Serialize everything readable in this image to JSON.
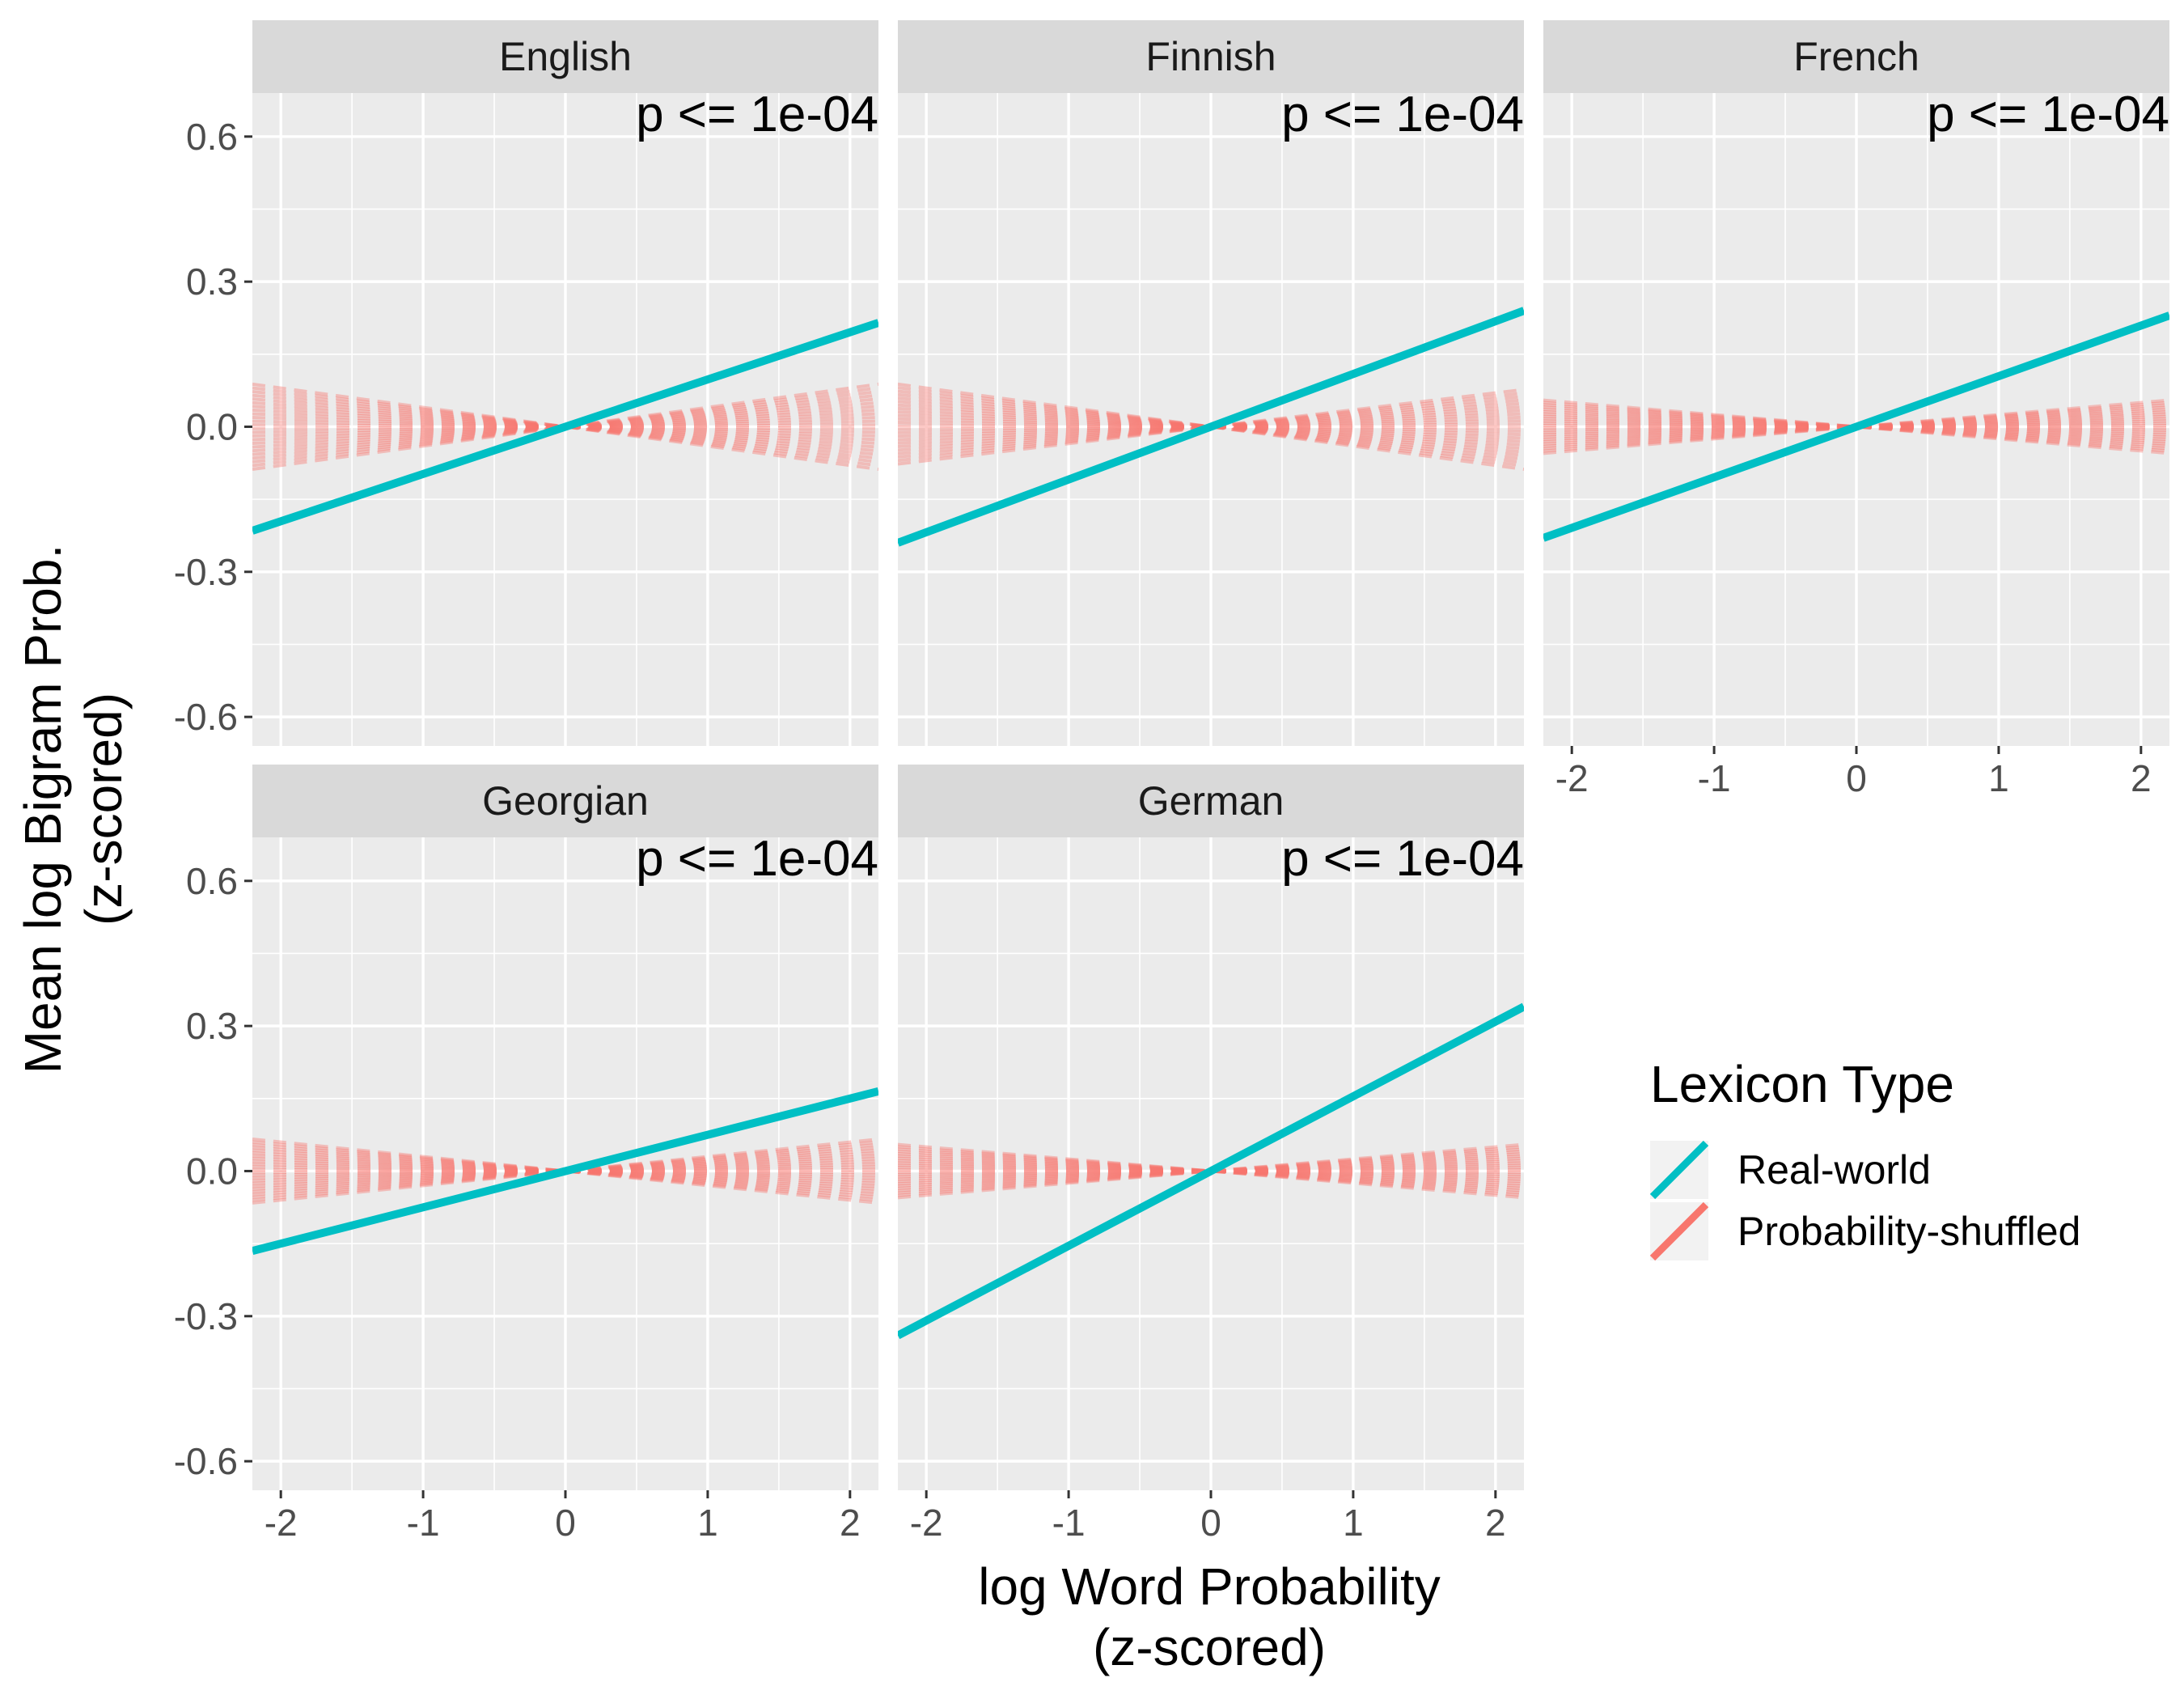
{
  "chart_data": {
    "type": "line",
    "facet_layout": "3 columns, 2 rows",
    "xlabel": "log Word Probability (z-scored)",
    "xlabel_lines": [
      "log Word Probability",
      "(z-scored)"
    ],
    "ylabel": "Mean log Bigram Prob. (z-scored)",
    "ylabel_lines": [
      "Mean log Bigram Prob.",
      "(z-scored)"
    ],
    "xlim": [
      -2.2,
      2.2
    ],
    "ylim": [
      -0.66,
      0.69
    ],
    "x_ticks": [
      -2,
      -1,
      0,
      1,
      2
    ],
    "x_tick_labels": [
      "-2",
      "-1",
      "0",
      "1",
      "2"
    ],
    "y_ticks": [
      -0.6,
      -0.3,
      0.0,
      0.3,
      0.6
    ],
    "y_tick_labels": [
      "-0.6",
      "-0.3",
      "0.0",
      "0.3",
      "0.6"
    ],
    "grid": true,
    "legend": {
      "title": "Lexicon Type",
      "position": "right",
      "entries": [
        {
          "name": "Real-world",
          "color": "#00BFC4"
        },
        {
          "name": "Probability-shuffled",
          "color": "#F8766D"
        }
      ]
    },
    "panels": [
      {
        "language": "English",
        "p_label": "p <= 1e-04",
        "real_world": {
          "x": [
            -2.2,
            2.2
          ],
          "y": [
            -0.215,
            0.215
          ]
        },
        "shuffled_slope_range": [
          -0.04,
          0.04
        ]
      },
      {
        "language": "Finnish",
        "p_label": "p <= 1e-04",
        "real_world": {
          "x": [
            -2.2,
            2.2
          ],
          "y": [
            -0.24,
            0.24
          ]
        },
        "shuffled_slope_range": [
          -0.04,
          0.035
        ]
      },
      {
        "language": "French",
        "p_label": "p <= 1e-04",
        "real_world": {
          "x": [
            -2.2,
            2.2
          ],
          "y": [
            -0.23,
            0.23
          ]
        },
        "shuffled_slope_range": [
          -0.025,
          0.025
        ]
      },
      {
        "language": "Georgian",
        "p_label": "p <= 1e-04",
        "real_world": {
          "x": [
            -2.2,
            2.2
          ],
          "y": [
            -0.165,
            0.165
          ]
        },
        "shuffled_slope_range": [
          -0.03,
          0.03
        ]
      },
      {
        "language": "German",
        "p_label": "p <= 1e-04",
        "real_world": {
          "x": [
            -2.2,
            2.2
          ],
          "y": [
            -0.34,
            0.34
          ]
        },
        "shuffled_slope_range": [
          -0.025,
          0.025
        ]
      }
    ]
  }
}
